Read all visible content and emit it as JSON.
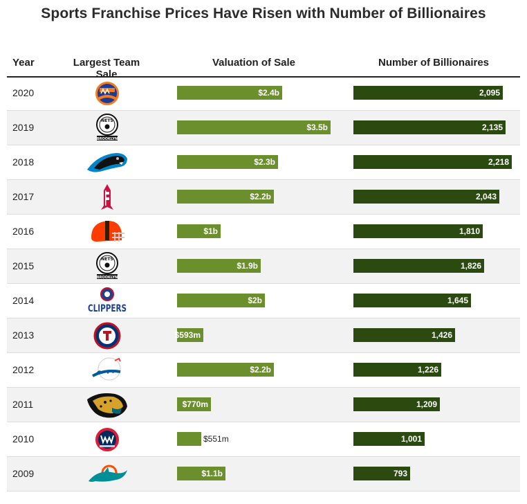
{
  "chart_data": {
    "type": "table",
    "title": "Sports Franchise Prices Have Risen with Number of Billionaires",
    "columns": [
      "Year",
      "Largest Team Sale",
      "Valuation of Sale",
      "Number of Billionaires"
    ],
    "rows": [
      {
        "year": "2020",
        "team_icon": "new-york-mets-logo-icon",
        "valuation_label": "$2.4b",
        "valuation": 2.4,
        "billionaires_label": "2,095",
        "billionaires": 2095
      },
      {
        "year": "2019",
        "team_icon": "brooklyn-nets-logo-icon",
        "valuation_label": "$3.5b",
        "valuation": 3.5,
        "billionaires_label": "2,135",
        "billionaires": 2135
      },
      {
        "year": "2018",
        "team_icon": "carolina-panthers-logo-icon",
        "valuation_label": "$2.3b",
        "valuation": 2.3,
        "billionaires_label": "2,218",
        "billionaires": 2218
      },
      {
        "year": "2017",
        "team_icon": "houston-rockets-logo-icon",
        "valuation_label": "$2.2b",
        "valuation": 2.2,
        "billionaires_label": "2,043",
        "billionaires": 2043
      },
      {
        "year": "2016",
        "team_icon": "cleveland-browns-logo-icon",
        "valuation_label": "$1b",
        "valuation": 1.0,
        "billionaires_label": "1,810",
        "billionaires": 1810
      },
      {
        "year": "2015",
        "team_icon": "brooklyn-nets-logo-icon",
        "valuation_label": "$1.9b",
        "valuation": 1.9,
        "billionaires_label": "1,826",
        "billionaires": 1826
      },
      {
        "year": "2014",
        "team_icon": "la-clippers-logo-icon",
        "valuation_label": "$2b",
        "valuation": 2.0,
        "billionaires_label": "1,645",
        "billionaires": 1645
      },
      {
        "year": "2013",
        "team_icon": "texas-rangers-logo-icon",
        "valuation_label": "$593m",
        "valuation": 0.593,
        "billionaires_label": "1,426",
        "billionaires": 1426
      },
      {
        "year": "2012",
        "team_icon": "la-dodgers-logo-icon",
        "valuation_label": "$2.2b",
        "valuation": 2.2,
        "billionaires_label": "1,226",
        "billionaires": 1226
      },
      {
        "year": "2011",
        "team_icon": "jacksonville-jaguars-logo-icon",
        "valuation_label": "$770m",
        "valuation": 0.77,
        "billionaires_label": "1,209",
        "billionaires": 1209
      },
      {
        "year": "2010",
        "team_icon": "washington-wizards-logo-icon",
        "valuation_label": "$551m",
        "valuation": 0.551,
        "billionaires_label": "1,001",
        "billionaires": 1001
      },
      {
        "year": "2009",
        "team_icon": "miami-dolphins-logo-icon",
        "valuation_label": "$1.1b",
        "valuation": 1.1,
        "billionaires_label": "793",
        "billionaires": 793
      }
    ],
    "logo_text": {
      "nets_top": "NETS",
      "nets_bottom": "BROOKLYN",
      "clippers": "CLIPPERS"
    },
    "colors": {
      "valuation_bar": "#6b8f2c",
      "billionaires_bar": "#2a4a10"
    }
  }
}
